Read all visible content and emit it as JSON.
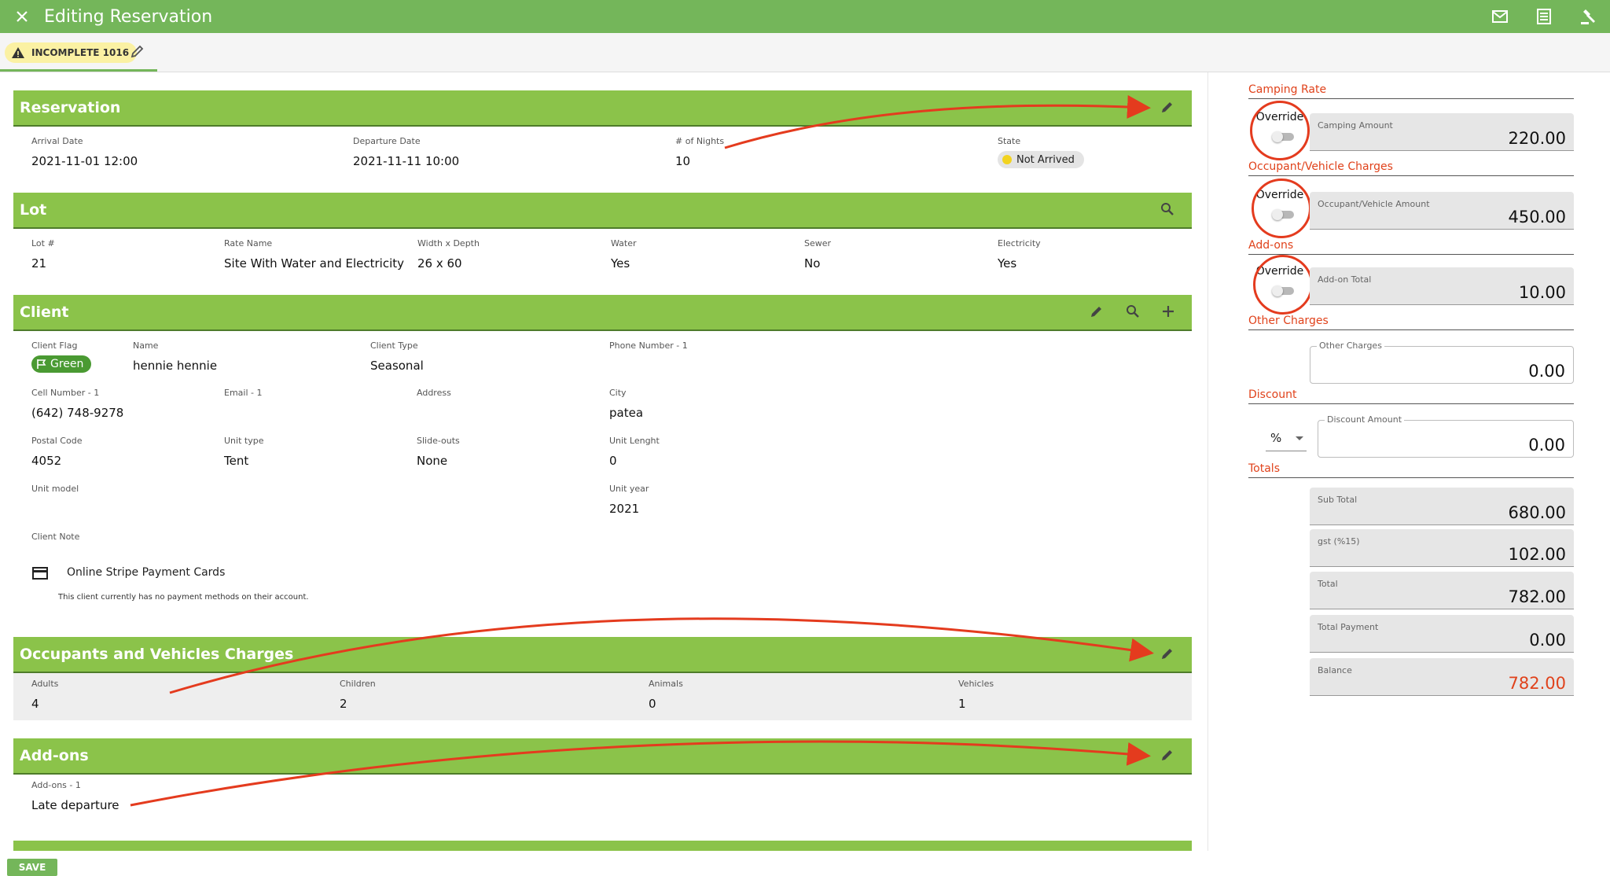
{
  "header": {
    "title": "Editing Reservation",
    "close_icon": "close-icon",
    "icons": [
      "mail-icon",
      "receipt-icon",
      "gavel-icon"
    ]
  },
  "status": {
    "badge": "INCOMPLETE 1016"
  },
  "reservation": {
    "title": "Reservation",
    "fields": [
      {
        "label": "Arrival Date",
        "value": "2021-11-01 12:00"
      },
      {
        "label": "Departure Date",
        "value": "2021-11-11 10:00"
      },
      {
        "label": "# of Nights",
        "value": "10"
      },
      {
        "label": "State",
        "value": "Not Arrived"
      }
    ]
  },
  "lot": {
    "title": "Lot",
    "fields": [
      {
        "label": "Lot #",
        "value": "21"
      },
      {
        "label": "Rate Name",
        "value": "Site With Water and Electricity"
      },
      {
        "label": "Width x Depth",
        "value": "26 x 60"
      },
      {
        "label": "Water",
        "value": "Yes"
      },
      {
        "label": "Sewer",
        "value": "No"
      },
      {
        "label": "Electricity",
        "value": "Yes"
      }
    ]
  },
  "client": {
    "title": "Client",
    "flag": {
      "label": "Client Flag",
      "value": "Green",
      "color": "#4a9a32"
    },
    "name": {
      "label": "Name",
      "value": "hennie hennie"
    },
    "client_type": {
      "label": "Client Type",
      "value": "Seasonal"
    },
    "phone": {
      "label": "Phone Number - 1",
      "value": ""
    },
    "cell": {
      "label": "Cell Number - 1",
      "value": "(642) 748-9278"
    },
    "email": {
      "label": "Email - 1",
      "value": ""
    },
    "address": {
      "label": "Address",
      "value": ""
    },
    "city": {
      "label": "City",
      "value": "patea"
    },
    "postal": {
      "label": "Postal Code",
      "value": "4052"
    },
    "unit_type": {
      "label": "Unit type",
      "value": "Tent"
    },
    "slideouts": {
      "label": "Slide-outs",
      "value": "None"
    },
    "unit_length": {
      "label": "Unit Lenght",
      "value": "0"
    },
    "unit_model": {
      "label": "Unit model",
      "value": ""
    },
    "unit_year": {
      "label": "Unit year",
      "value": "2021"
    },
    "note": {
      "label": "Client Note",
      "value": ""
    },
    "payment": {
      "title": "Online Stripe Payment Cards",
      "message": "This client currently has no payment methods on their account."
    }
  },
  "occupants": {
    "title": "Occupants and Vehicles Charges",
    "fields": [
      {
        "label": "Adults",
        "value": "4"
      },
      {
        "label": "Children",
        "value": "2"
      },
      {
        "label": "Animals",
        "value": "0"
      },
      {
        "label": "Vehicles",
        "value": "1"
      }
    ]
  },
  "addons": {
    "title": "Add-ons",
    "fields": [
      {
        "label": "Add-ons - 1",
        "value": "Late departure"
      }
    ]
  },
  "save_label": "SAVE",
  "summary": {
    "camping": {
      "heading": "Camping Rate",
      "override": "Override",
      "label": "Camping Amount",
      "value": "220.00"
    },
    "occupant": {
      "heading": "Occupant/Vehicle Charges",
      "override": "Override",
      "label": "Occupant/Vehicle Amount",
      "value": "450.00"
    },
    "addons": {
      "heading": "Add-ons",
      "override": "Override",
      "label": "Add-on Total",
      "value": "10.00"
    },
    "other": {
      "heading": "Other Charges",
      "label": "Other Charges",
      "value": "0.00"
    },
    "discount": {
      "heading": "Discount",
      "type": "%",
      "label": "Discount Amount",
      "value": "0.00"
    },
    "totals": {
      "heading": "Totals",
      "subtotal": {
        "label": "Sub Total",
        "value": "680.00"
      },
      "gst": {
        "label": "gst (%15)",
        "value": "102.00"
      },
      "total": {
        "label": "Total",
        "value": "782.00"
      },
      "payment": {
        "label": "Total Payment",
        "value": "0.00"
      },
      "balance": {
        "label": "Balance",
        "value": "782.00"
      }
    }
  },
  "colors": {
    "header": "#74b65a",
    "section": "#8bc34a",
    "accent": "#e0421b",
    "annotation": "#e43b1e"
  }
}
